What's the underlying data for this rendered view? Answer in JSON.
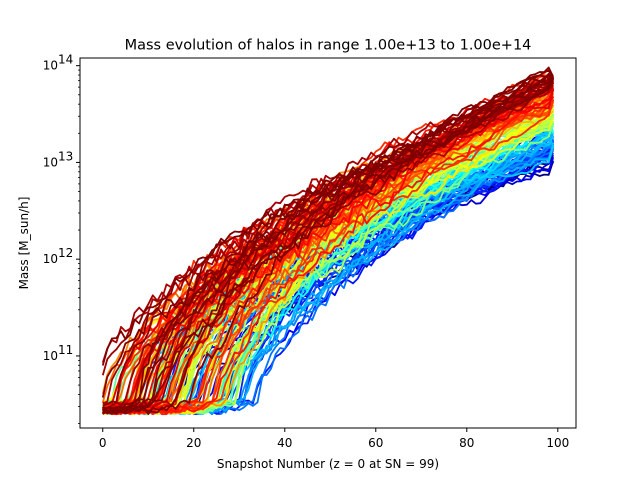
{
  "chart_data": {
    "type": "line",
    "title": "Mass evolution of halos in range 1.00e+13 to 1.00e+14",
    "xlabel": "Snapshot Number (z = 0 at SN = 99)",
    "ylabel": "Mass [M_sun/h]",
    "xlim": [
      -5,
      104
    ],
    "ylim": [
      18000000000.0,
      120000000000000.0
    ],
    "yscale": "log",
    "colormap": "jet",
    "grid": false,
    "legend": "none",
    "x_ticks": [
      {
        "value": 0,
        "label": "0"
      },
      {
        "value": 20,
        "label": "20"
      },
      {
        "value": 40,
        "label": "40"
      },
      {
        "value": 60,
        "label": "60"
      },
      {
        "value": 80,
        "label": "80"
      },
      {
        "value": 100,
        "label": "100"
      }
    ],
    "y_ticks": [
      {
        "value": 100000000000.0,
        "base": "10",
        "exp": "11"
      },
      {
        "value": 1000000000000.0,
        "base": "10",
        "exp": "12"
      },
      {
        "value": 10000000000000.0,
        "base": "10",
        "exp": "13"
      },
      {
        "value": 100000000000000.0,
        "base": "10",
        "exp": "14"
      }
    ],
    "x_range": [
      0,
      99
    ],
    "floor_mass": 25000000000.0,
    "series_count": 160,
    "final_mass_range": [
      10000000000000.0,
      79000000000000.0
    ],
    "series": [
      {
        "x": [
          0,
          10,
          20,
          30,
          40,
          50,
          60,
          70,
          80,
          90,
          99
        ],
        "y": [
          25000000000.0,
          26000000000.0,
          28000000000.0,
          40000000000.0,
          300000000000.0,
          1600000000000.0,
          3500000000000.0,
          6000000000000.0,
          8000000000000.0,
          10000000000000.0,
          12000000000000.0
        ],
        "final_mass": 12000000000000.0
      },
      {
        "x": [
          0,
          10,
          20,
          30,
          40,
          50,
          60,
          70,
          80,
          90,
          99
        ],
        "y": [
          28000000000.0,
          50000000000.0,
          180000000000.0,
          800000000000.0,
          2500000000000.0,
          5500000000000.0,
          9000000000000.0,
          14000000000000.0,
          20000000000000.0,
          27000000000000.0,
          32000000000000.0
        ],
        "final_mass": 32000000000000.0
      },
      {
        "x": [
          0,
          10,
          20,
          30,
          40,
          50,
          60,
          70,
          80,
          90,
          99
        ],
        "y": [
          40000000000.0,
          100000000000.0,
          700000000000.0,
          2500000000000.0,
          6500000000000.0,
          12000000000000.0,
          19000000000000.0,
          29000000000000.0,
          40000000000000.0,
          55000000000000.0,
          78000000000000.0
        ],
        "final_mass": 78000000000000.0
      }
    ]
  }
}
